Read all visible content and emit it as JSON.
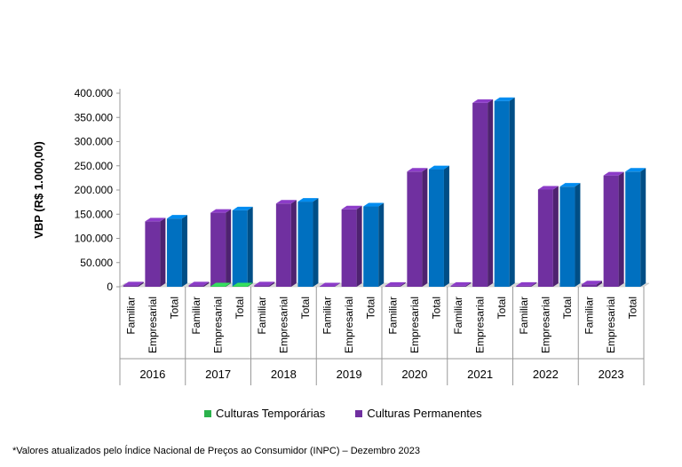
{
  "chart_data": {
    "type": "bar",
    "style": "3d-clustered",
    "ylabel": "VBP (R$ 1.000,00)",
    "ylim": [
      0,
      400000
    ],
    "yticks": [
      "0",
      "50.000",
      "100.000",
      "150.000",
      "200.000",
      "250.000",
      "300.000",
      "350.000",
      "400.000"
    ],
    "ytick_values": [
      0,
      50000,
      100000,
      150000,
      200000,
      250000,
      300000,
      350000,
      400000
    ],
    "subcategories": [
      "Familiar",
      "Empresarial",
      "Total"
    ],
    "groups": [
      {
        "year": "2016",
        "temporarias": [
          0,
          0,
          0
        ],
        "permanentes": [
          3000,
          135000,
          141000
        ]
      },
      {
        "year": "2017",
        "temporarias": [
          0,
          1000,
          1000
        ],
        "permanentes": [
          3000,
          153000,
          158000
        ]
      },
      {
        "year": "2018",
        "temporarias": [
          0,
          0,
          0
        ],
        "permanentes": [
          3000,
          172000,
          176000
        ]
      },
      {
        "year": "2019",
        "temporarias": [
          0,
          0,
          0
        ],
        "permanentes": [
          1000,
          160000,
          166000
        ]
      },
      {
        "year": "2020",
        "temporarias": [
          0,
          0,
          0
        ],
        "permanentes": [
          2000,
          238000,
          243000
        ]
      },
      {
        "year": "2021",
        "temporarias": [
          0,
          0,
          0
        ],
        "permanentes": [
          2000,
          380000,
          384000
        ]
      },
      {
        "year": "2022",
        "temporarias": [
          0,
          0,
          0
        ],
        "permanentes": [
          2000,
          201000,
          207000
        ]
      },
      {
        "year": "2023",
        "temporarias": [
          0,
          0,
          0
        ],
        "permanentes": [
          5000,
          230000,
          238000
        ]
      }
    ],
    "series": [
      {
        "name": "Culturas Temporárias",
        "color": "#2BB24C"
      },
      {
        "name": "Culturas Permanentes",
        "color": "#7030A0"
      }
    ],
    "total_color": "#0070C0",
    "legend_position": "bottom"
  },
  "legend": {
    "temporarias": "Culturas Temporárias",
    "permanentes": "Culturas Permanentes"
  },
  "footnote": "*Valores atualizados pelo Índice Nacional de Preços ao Consumidor (INPC) – Dezembro 2023"
}
